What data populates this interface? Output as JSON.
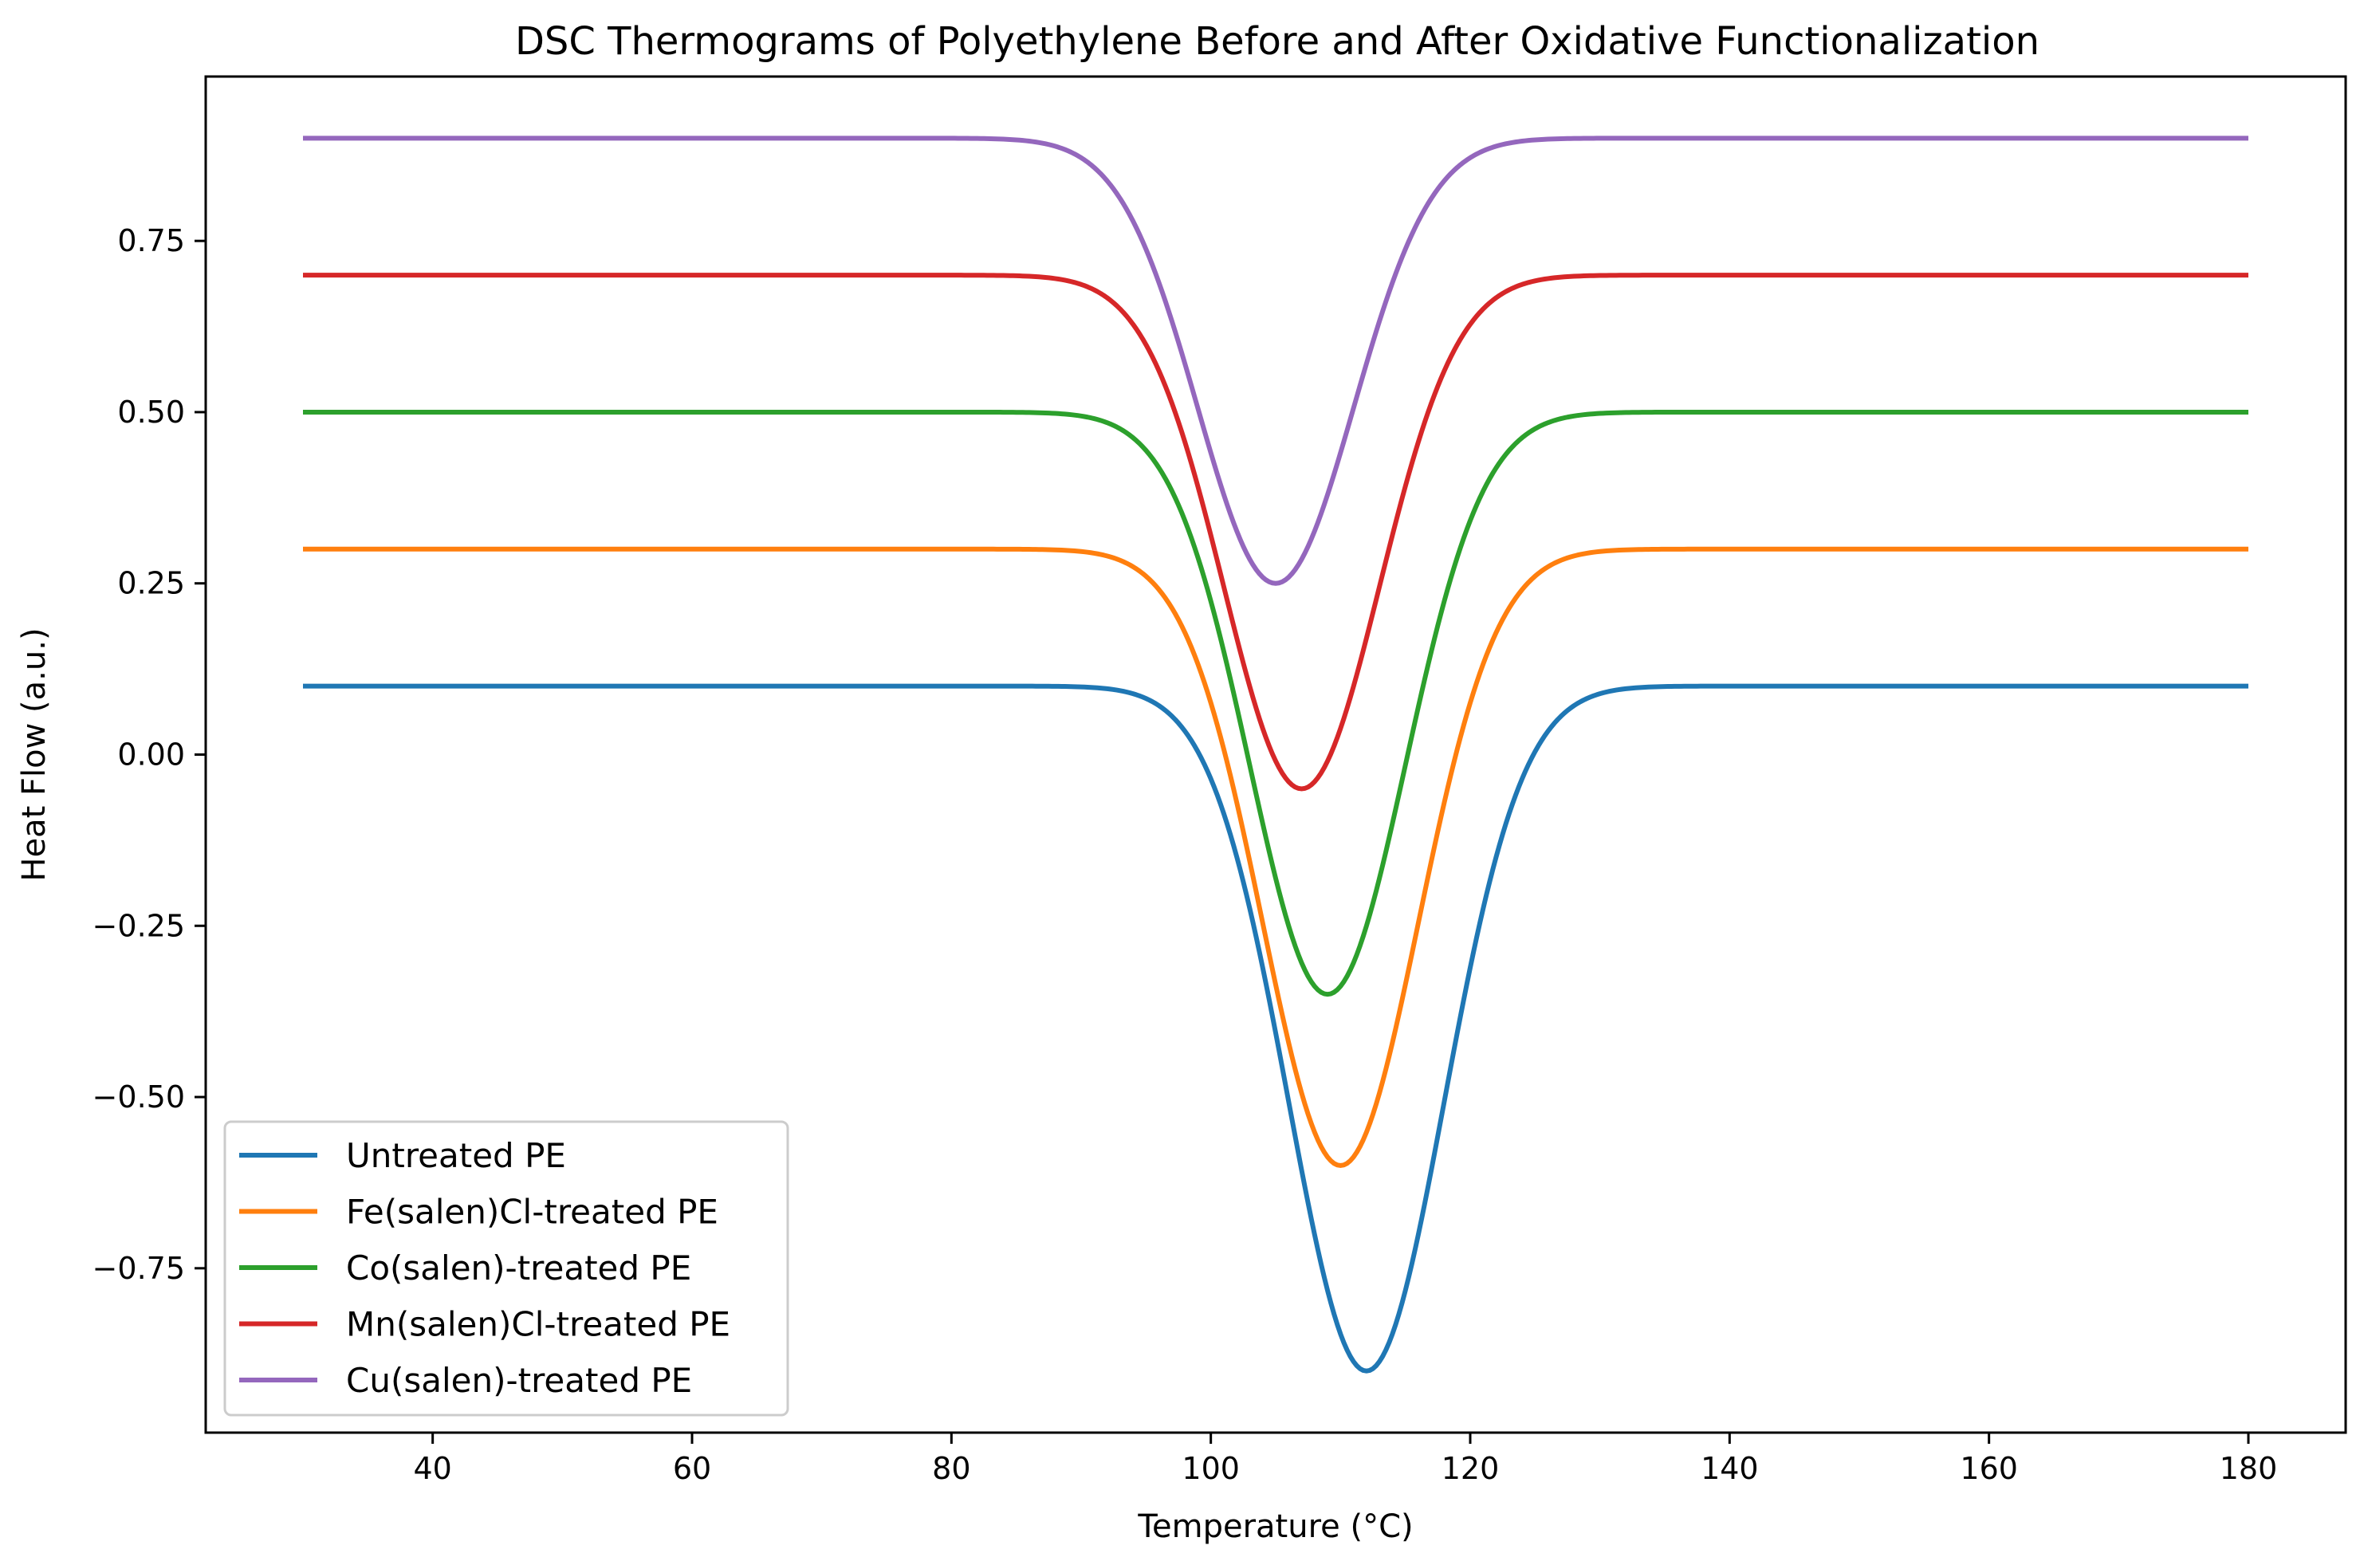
{
  "chart_data": {
    "type": "line",
    "title": "DSC Thermograms of Polyethylene Before and After Oxidative Functionalization",
    "xlabel": "Temperature (°C)",
    "ylabel": "Heat Flow (a.u.)",
    "xlim": [
      22.5,
      187.5
    ],
    "ylim": [
      -0.99,
      0.99
    ],
    "x_ticks": [
      40,
      60,
      80,
      100,
      120,
      140,
      160,
      180
    ],
    "x_tick_labels": [
      "40",
      "60",
      "80",
      "100",
      "120",
      "140",
      "160",
      "180"
    ],
    "y_ticks": [
      -0.75,
      -0.5,
      -0.25,
      0.0,
      0.25,
      0.5,
      0.75
    ],
    "y_tick_labels": [
      "−0.75",
      "−0.50",
      "−0.25",
      "0.00",
      "0.25",
      "0.50",
      "0.75"
    ],
    "x_range": [
      30,
      180
    ],
    "grid": false,
    "legend_position": "lower-left",
    "series": [
      {
        "name": "Untreated PE",
        "color": "#1f77b4",
        "baseline": 0.1,
        "peak_temp": 112,
        "peak_min": -0.9,
        "width": 6
      },
      {
        "name": "Fe(salen)Cl-treated PE",
        "color": "#ff7f0e",
        "baseline": 0.3,
        "peak_temp": 110,
        "peak_min": -0.6,
        "width": 6
      },
      {
        "name": "Co(salen)-treated PE",
        "color": "#2ca02c",
        "baseline": 0.5,
        "peak_temp": 109,
        "peak_min": -0.35,
        "width": 6
      },
      {
        "name": "Mn(salen)Cl-treated PE",
        "color": "#d62728",
        "baseline": 0.7,
        "peak_temp": 107,
        "peak_min": -0.05,
        "width": 6
      },
      {
        "name": "Cu(salen)-treated PE",
        "color": "#9467bd",
        "baseline": 0.9,
        "peak_temp": 105,
        "peak_min": 0.25,
        "width": 6
      }
    ]
  }
}
